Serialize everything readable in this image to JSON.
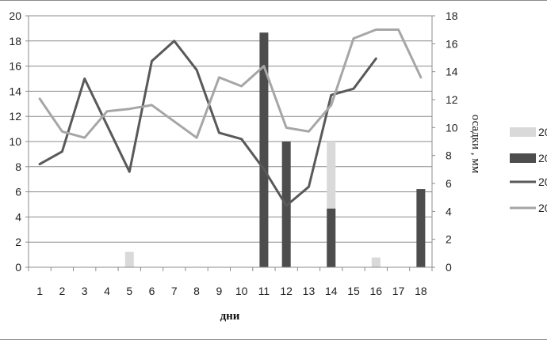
{
  "chart_data": {
    "type": "bar+line",
    "categories": [
      "1",
      "2",
      "3",
      "4",
      "5",
      "6",
      "7",
      "8",
      "9",
      "10",
      "11",
      "12",
      "13",
      "14",
      "15",
      "16",
      "17",
      "18"
    ],
    "xlabel": "дни",
    "ylabel_left": "",
    "ylabel_right": "осадки , мм",
    "ylim_left": [
      0,
      20
    ],
    "ylim_right": [
      0,
      18
    ],
    "yticks_left": [
      "0",
      "2",
      "4",
      "6",
      "8",
      "10",
      "12",
      "14",
      "16",
      "18",
      "20"
    ],
    "yticks_right": [
      "0",
      "2",
      "4",
      "6",
      "8",
      "10",
      "12",
      "14",
      "16",
      "18"
    ],
    "grid": "horizontal",
    "legend_position": "right",
    "colors": {
      "bar_light": "#d9d9d9",
      "bar_dark": "#4d4d4d",
      "line_dark": "#595959",
      "line_light": "#a6a6a6",
      "grid": "#8c8c8c"
    },
    "bar_series": [
      {
        "name": "20",
        "axis": "right",
        "color": "#d9d9d9",
        "values": [
          0,
          0,
          0,
          0,
          1.1,
          0,
          0,
          0,
          0,
          0,
          0,
          0,
          0,
          9.0,
          0,
          0.7,
          0,
          0
        ]
      },
      {
        "name": "20",
        "axis": "right",
        "color": "#4d4d4d",
        "values": [
          0,
          0,
          0,
          0,
          0,
          0,
          0,
          0,
          0,
          0,
          16.8,
          9.0,
          0,
          4.2,
          0,
          0,
          0,
          5.6
        ]
      }
    ],
    "line_series": [
      {
        "name": "20",
        "axis": "left",
        "color": "#595959",
        "values": [
          8.2,
          9.2,
          15.0,
          11.3,
          7.6,
          16.4,
          18.0,
          15.7,
          10.7,
          10.2,
          7.8,
          4.9,
          6.4,
          13.7,
          14.2,
          16.6,
          null,
          null
        ]
      },
      {
        "name": "20",
        "axis": "left",
        "color": "#a6a6a6",
        "values": [
          13.4,
          10.8,
          10.3,
          12.4,
          12.6,
          12.9,
          11.6,
          10.3,
          15.1,
          14.4,
          16.0,
          11.1,
          10.8,
          12.9,
          18.2,
          18.9,
          18.9,
          15.1
        ]
      }
    ]
  }
}
